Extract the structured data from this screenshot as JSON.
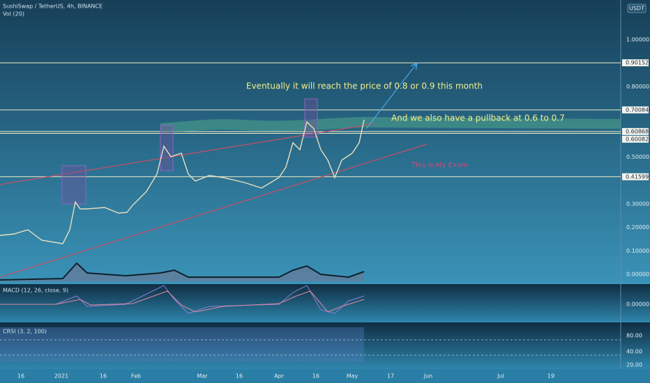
{
  "header": {
    "symbol": "SushiSwap / TetherUS, 4h, BINANCE",
    "volume": "Vol (20)",
    "currency": "USDT"
  },
  "annotations": {
    "target": "Eventually it will reach the price of 0.8 or 0.9 this month",
    "pullback": "And we also have a pullback at 0.6 to 0.7",
    "note": "This is My Exam"
  },
  "price_axis": [
    {
      "value": 1.0,
      "label": "1.00000"
    },
    {
      "value": 0.8,
      "label": "0.80000"
    },
    {
      "value": 0.5,
      "label": "0.50000"
    },
    {
      "value": 0.3,
      "label": "0.30000"
    },
    {
      "value": 0.2,
      "label": "0.20000"
    },
    {
      "value": 0.1,
      "label": "0.10000"
    },
    {
      "value": 0,
      "label": "0.00000"
    }
  ],
  "levels": [
    {
      "value": 0.90152,
      "label": "0.90152"
    },
    {
      "value": 0.70084,
      "label": "0.70084"
    },
    {
      "value": 0.60868,
      "label": "0.60868"
    },
    {
      "value": 0.60082,
      "label": "0.60082"
    },
    {
      "value": 0.41599,
      "label": "0.41599"
    }
  ],
  "macd": {
    "title": "MACD (12, 26, close, 9)",
    "zero": "0.00000"
  },
  "crsi": {
    "title": "CRSI (3, 2, 100)",
    "ticks": [
      "80.00",
      "40.00",
      "20.00"
    ]
  },
  "time_axis": [
    "16",
    "2021",
    "16",
    "Feb",
    "Mar",
    "16",
    "Apr",
    "16",
    "May",
    "17",
    "Jun",
    "Jul",
    "19"
  ]
}
